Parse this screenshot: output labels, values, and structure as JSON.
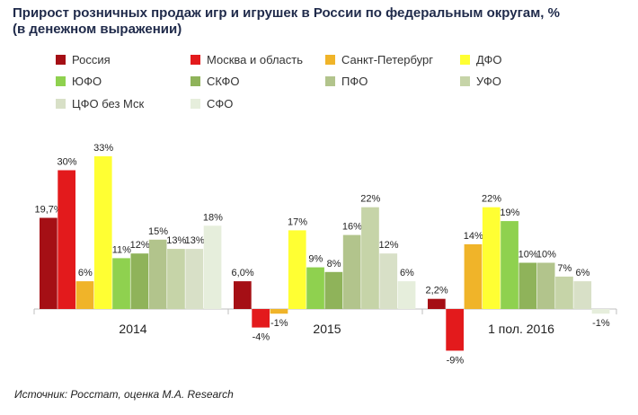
{
  "title_line1": "Прирост розничных продаж игр и игрушек в России по федеральным округам, %",
  "title_line2": "(в денежном выражении)",
  "source": "Источник: Росстат, оценка М.А. Research",
  "chart_data": {
    "type": "bar",
    "title": "Прирост розничных продаж игр и игрушек в России по федеральным округам, % (в денежном выражении)",
    "categories": [
      "2014",
      "2015",
      "1 пол. 2016"
    ],
    "series": [
      {
        "name": "Россия",
        "color": "#a50f15",
        "values": [
          19.7,
          6.0,
          2.2
        ],
        "labels": [
          "19,7%",
          "6,0%",
          "2,2%"
        ]
      },
      {
        "name": "Москва и область",
        "color": "#e31a1c",
        "values": [
          30,
          -4,
          -9
        ],
        "labels": [
          "30%",
          "-4%",
          "-9%"
        ]
      },
      {
        "name": "Санкт-Петербург",
        "color": "#f0b429",
        "values": [
          6,
          -1,
          14
        ],
        "labels": [
          "6%",
          "-1%",
          "14%"
        ]
      },
      {
        "name": "ДФО",
        "color": "#ffff33",
        "values": [
          33,
          17,
          22
        ],
        "labels": [
          "33%",
          "17%",
          "22%"
        ]
      },
      {
        "name": "ЮФО",
        "color": "#8fd14f",
        "values": [
          11,
          9,
          19
        ],
        "labels": [
          "11%",
          "9%",
          "19%"
        ]
      },
      {
        "name": "СКФО",
        "color": "#8fb35a",
        "values": [
          12,
          8,
          10
        ],
        "labels": [
          "12%",
          "8%",
          "10%"
        ]
      },
      {
        "name": "ПФО",
        "color": "#b2c48c",
        "values": [
          15,
          16,
          10
        ],
        "labels": [
          "15%",
          "16%",
          "10%"
        ]
      },
      {
        "name": "УФО",
        "color": "#c6d4a8",
        "values": [
          13,
          22,
          7
        ],
        "labels": [
          "13%",
          "22%",
          "7%"
        ]
      },
      {
        "name": "ЦФО без Мск",
        "color": "#d8e0c7",
        "values": [
          13,
          12,
          6
        ],
        "labels": [
          "13%",
          "12%",
          "6%"
        ]
      },
      {
        "name": "СФО",
        "color": "#e6eedc",
        "values": [
          18,
          6,
          -1
        ],
        "labels": [
          "18%",
          "6%",
          "-1%"
        ]
      }
    ],
    "ylim": [
      -10,
      35
    ],
    "grid": false,
    "legend_position": "top"
  }
}
